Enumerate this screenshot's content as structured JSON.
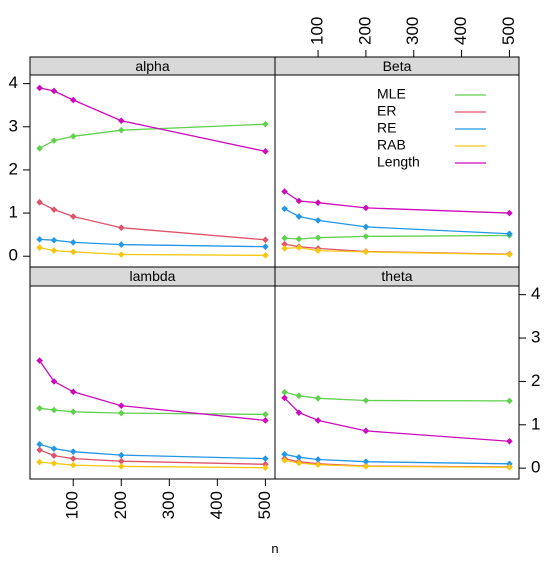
{
  "chart_data": {
    "type": "line",
    "xlabel": "n",
    "ylabel": "",
    "x_ticks": [
      100,
      200,
      300,
      400,
      500
    ],
    "y_ticks": [
      0,
      1,
      2,
      3,
      4
    ],
    "xlim": [
      10,
      520
    ],
    "ylim": [
      -0.25,
      4.2
    ],
    "grid": false,
    "legend_position": "top-right, inside Beta panel",
    "series_styles": [
      {
        "name": "MLE",
        "color": "#61d04f"
      },
      {
        "name": "ER",
        "color": "#df536b"
      },
      {
        "name": "RE",
        "color": "#2297e6"
      },
      {
        "name": "RAB",
        "color": "#f5c710"
      },
      {
        "name": "Length",
        "color": "#cd0bbc"
      }
    ],
    "x": [
      30,
      60,
      100,
      200,
      500
    ],
    "panels": [
      {
        "title": "alpha",
        "series": [
          {
            "name": "MLE",
            "values": [
              2.5,
              2.68,
              2.78,
              2.92,
              3.06
            ]
          },
          {
            "name": "ER",
            "values": [
              1.25,
              1.08,
              0.92,
              0.66,
              0.38
            ]
          },
          {
            "name": "RE",
            "values": [
              0.39,
              0.37,
              0.32,
              0.27,
              0.22
            ]
          },
          {
            "name": "RAB",
            "values": [
              0.2,
              0.13,
              0.1,
              0.04,
              0.02
            ]
          },
          {
            "name": "Length",
            "values": [
              3.9,
              3.83,
              3.62,
              3.14,
              2.43
            ]
          }
        ]
      },
      {
        "title": "Beta",
        "series": [
          {
            "name": "MLE",
            "values": [
              0.42,
              0.4,
              0.43,
              0.46,
              0.48
            ]
          },
          {
            "name": "ER",
            "values": [
              0.28,
              0.22,
              0.18,
              0.11,
              0.05
            ]
          },
          {
            "name": "RE",
            "values": [
              1.1,
              0.92,
              0.83,
              0.68,
              0.52
            ]
          },
          {
            "name": "RAB",
            "values": [
              0.18,
              0.2,
              0.13,
              0.1,
              0.04
            ]
          },
          {
            "name": "Length",
            "values": [
              1.5,
              1.28,
              1.24,
              1.12,
              1.0
            ]
          }
        ]
      },
      {
        "title": "lambda",
        "series": [
          {
            "name": "MLE",
            "values": [
              1.38,
              1.34,
              1.3,
              1.27,
              1.24
            ]
          },
          {
            "name": "ER",
            "values": [
              0.42,
              0.29,
              0.22,
              0.16,
              0.09
            ]
          },
          {
            "name": "RE",
            "values": [
              0.55,
              0.45,
              0.38,
              0.3,
              0.22
            ]
          },
          {
            "name": "RAB",
            "values": [
              0.14,
              0.11,
              0.07,
              0.04,
              0.01
            ]
          },
          {
            "name": "Length",
            "values": [
              2.48,
              2.0,
              1.76,
              1.44,
              1.1
            ]
          }
        ]
      },
      {
        "title": "theta",
        "series": [
          {
            "name": "MLE",
            "values": [
              1.75,
              1.67,
              1.61,
              1.56,
              1.55
            ]
          },
          {
            "name": "ER",
            "values": [
              0.22,
              0.15,
              0.1,
              0.05,
              0.03
            ]
          },
          {
            "name": "RE",
            "values": [
              0.32,
              0.25,
              0.2,
              0.15,
              0.1
            ]
          },
          {
            "name": "RAB",
            "values": [
              0.18,
              0.12,
              0.08,
              0.04,
              0.02
            ]
          },
          {
            "name": "Length",
            "values": [
              1.62,
              1.28,
              1.1,
              0.86,
              0.62
            ]
          }
        ]
      }
    ]
  }
}
